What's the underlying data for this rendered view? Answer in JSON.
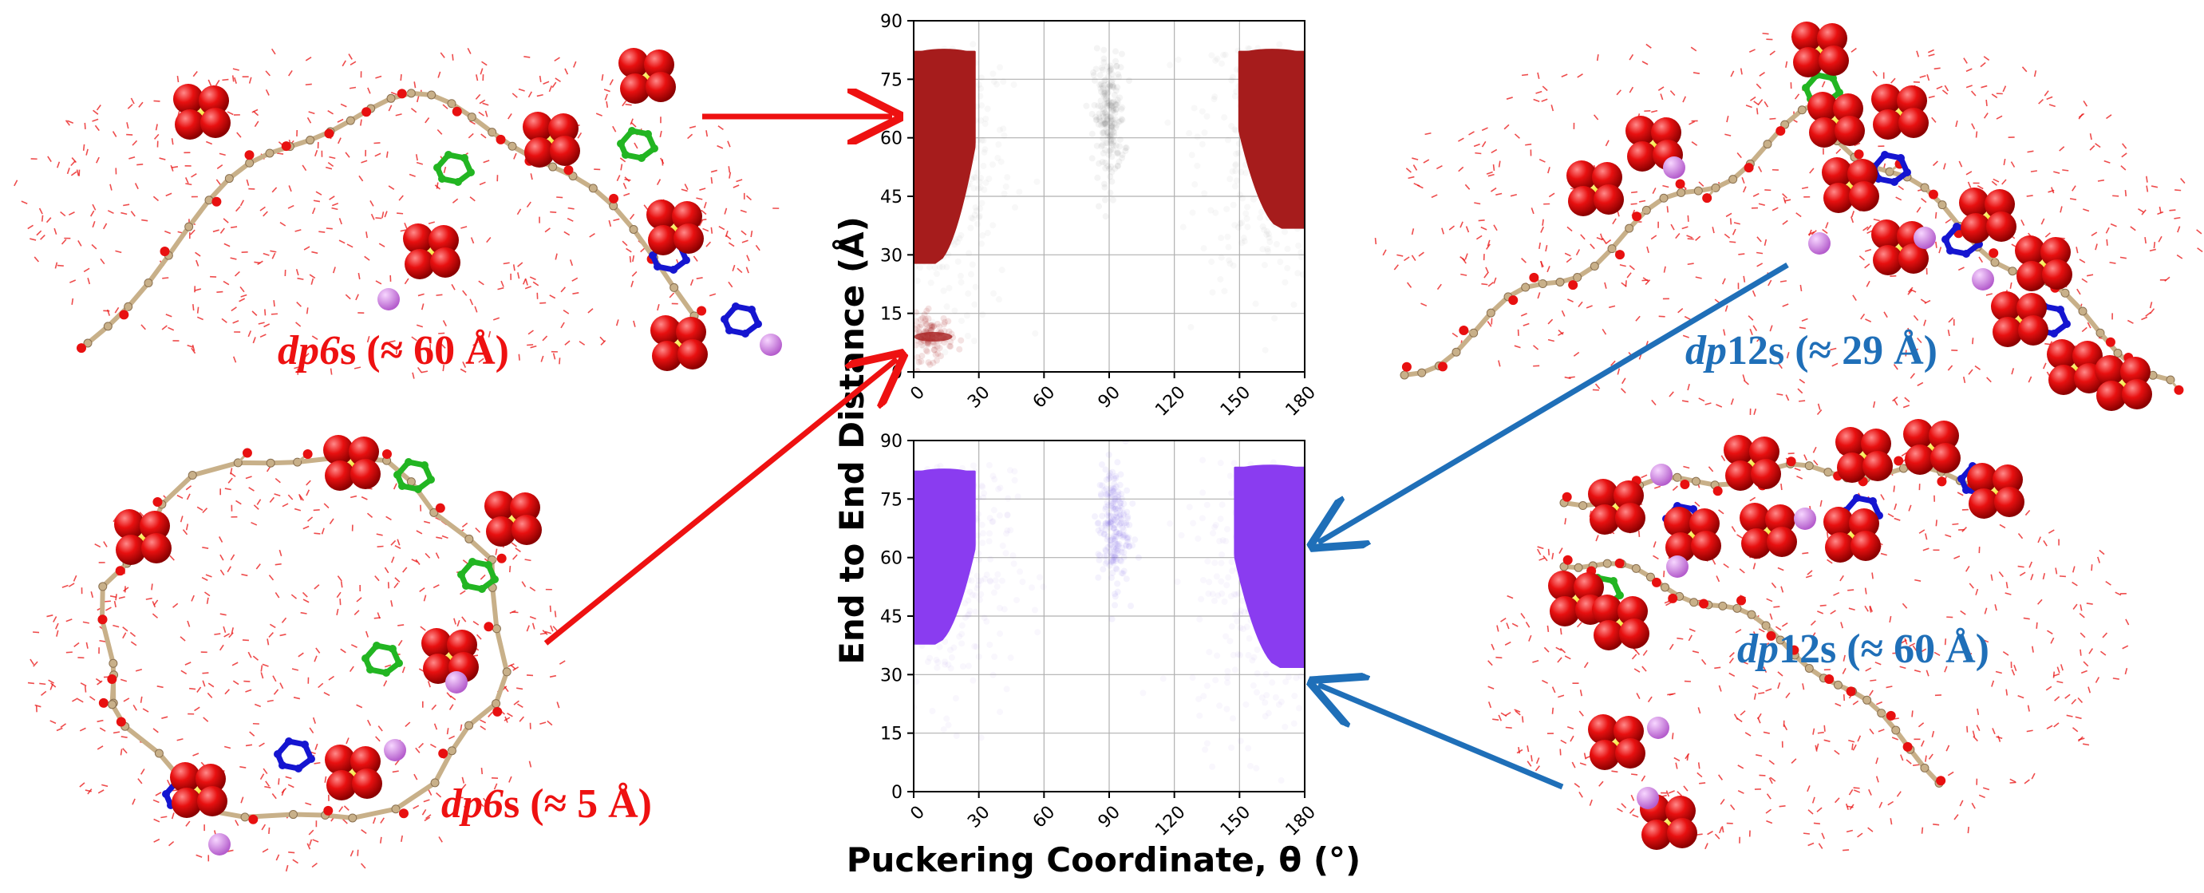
{
  "labels": {
    "dp6s_60": {
      "prefix": "dp6",
      "suffix": "s (≈ 60 Å)"
    },
    "dp6s_5": {
      "prefix": "dp6",
      "suffix": "s (≈ 5 Å)"
    },
    "dp12s_29": {
      "prefix": "dp",
      "suffix": "12s (≈ 29 Å)"
    },
    "dp12s_60": {
      "prefix": "dp",
      "suffix": "12s (≈ 60 Å)"
    }
  },
  "colors": {
    "red_label": "#ee1111",
    "blue_label": "#1f6fb8",
    "red_arrow": "#ee1111",
    "blue_arrow": "#1f6fb8",
    "top_series": "#a61c1c",
    "bottom_series": "#8a3cf0",
    "sulfur": "#f2e21a",
    "oxygen": "#e81010",
    "carbon": "#c8b089",
    "nitrogen": "#1515d0",
    "green": "#22b522",
    "sodium": "#d98be8"
  },
  "chart_data": [
    {
      "type": "scatter",
      "name": "top-panel",
      "series_color": "#a61c1c",
      "xlabel": "Puckering Coordinate, θ (°)",
      "ylabel": "End to End Distance (Å)",
      "xlim": [
        0,
        180
      ],
      "ylim": [
        0,
        90
      ],
      "xticks": [
        0,
        30,
        60,
        90,
        120,
        150,
        180
      ],
      "yticks": [
        0,
        15,
        30,
        45,
        60,
        75,
        90
      ],
      "grid": true,
      "dense_regions": [
        {
          "x_range": [
            0,
            28
          ],
          "y_range": [
            28,
            82
          ],
          "label": "low-theta cluster"
        },
        {
          "x_range": [
            150,
            180
          ],
          "y_range": [
            37,
            82
          ],
          "label": "high-theta cluster"
        }
      ],
      "sparse_regions": [
        {
          "x_center": 90,
          "y_center": 65,
          "label": "mid-theta cloud"
        },
        {
          "x_center": 8,
          "y_center": 9,
          "label": "low-distance band"
        }
      ]
    },
    {
      "type": "scatter",
      "name": "bottom-panel",
      "series_color": "#8a3cf0",
      "xlabel": "Puckering Coordinate, θ (°)",
      "ylabel": "End to End Distance (Å)",
      "xlim": [
        0,
        180
      ],
      "ylim": [
        0,
        90
      ],
      "xticks": [
        0,
        30,
        60,
        90,
        120,
        150,
        180
      ],
      "yticks": [
        0,
        15,
        30,
        45,
        60,
        75,
        90
      ],
      "grid": true,
      "dense_regions": [
        {
          "x_range": [
            0,
            28
          ],
          "y_range": [
            38,
            82
          ],
          "label": "low-theta cluster"
        },
        {
          "x_range": [
            148,
            180
          ],
          "y_range": [
            32,
            83
          ],
          "label": "high-theta cluster"
        }
      ],
      "sparse_regions": [
        {
          "x_center": 92,
          "y_center": 68,
          "label": "mid-theta cloud"
        }
      ]
    }
  ],
  "axis_titles": {
    "x": "Puckering Coordinate, θ (°)",
    "y": "End to End Distance (Å)"
  }
}
